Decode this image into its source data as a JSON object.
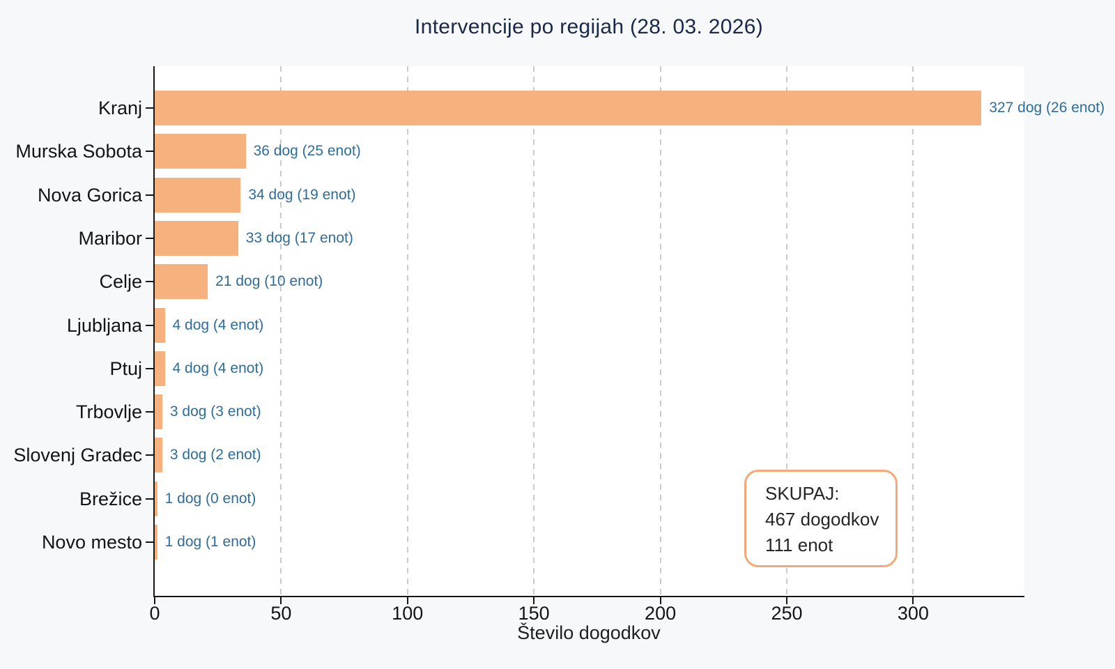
{
  "chart_data": {
    "type": "bar",
    "orientation": "horizontal",
    "title": "Intervencije po regijah (28. 03. 2026)",
    "xlabel": "Število dogodkov",
    "ylabel": "",
    "xlim": [
      0,
      344
    ],
    "xticks": [
      0,
      50,
      100,
      150,
      200,
      250,
      300
    ],
    "grid": "vertical dashed gridlines at xticks",
    "legend": "none",
    "categories": [
      "Kranj",
      "Murska Sobota",
      "Nova Gorica",
      "Maribor",
      "Celje",
      "Ljubljana",
      "Ptuj",
      "Trbovlje",
      "Slovenj Gradec",
      "Brežice",
      "Novo mesto"
    ],
    "values": [
      327,
      36,
      34,
      33,
      21,
      4,
      4,
      3,
      3,
      1,
      1
    ],
    "units": [
      26,
      25,
      19,
      17,
      10,
      4,
      4,
      3,
      2,
      0,
      1
    ],
    "bar_labels": [
      "327 dog (26 enot)",
      "36 dog (25 enot)",
      "34 dog (19 enot)",
      "33 dog (17 enot)",
      "21 dog (10 enot)",
      "4 dog (4 enot)",
      "4 dog (4 enot)",
      "3 dog (3 enot)",
      "3 dog (2 enot)",
      "1 dog (0 enot)",
      "1 dog (1 enot)"
    ],
    "annotation": {
      "lines": [
        "SKUPAJ:",
        "467 dogodkov",
        "111 enot"
      ],
      "total_events": 467,
      "total_units": 111
    },
    "colors": {
      "background": "#f7f8fa",
      "plot_background": "#ffffff",
      "bar": "#f5b17e",
      "bar_label_text": "#2e6d99",
      "title_text": "#1b2949",
      "axis_text": "#141414",
      "spine": "#161616",
      "grid": "#cbcbcb",
      "annotation_border": "#f4a878"
    }
  }
}
